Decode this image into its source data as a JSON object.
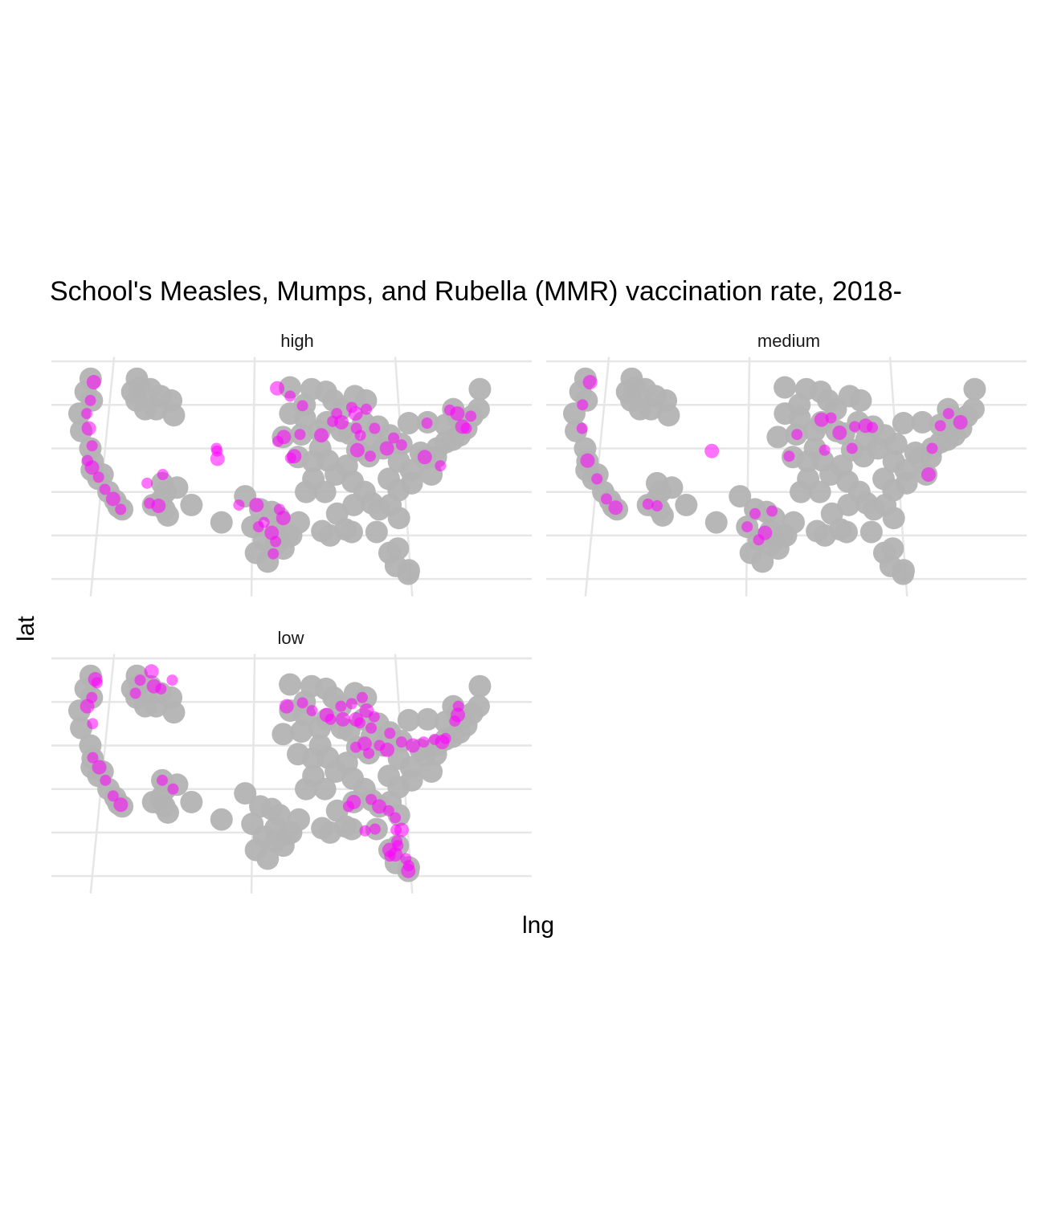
{
  "chart_data": {
    "type": "scatter",
    "title": "School's Measles, Mumps, and Rubella (MMR) vaccination rate, 2018-",
    "xlabel": "lng",
    "ylabel": "lat",
    "facets": [
      "high",
      "medium",
      "low"
    ],
    "xlim": [
      -125,
      -65
    ],
    "ylim": [
      24,
      50
    ],
    "x_gridlines": [
      -120,
      -100,
      -80
    ],
    "y_gridlines": [
      25,
      30,
      35,
      40,
      45,
      50
    ],
    "grid": true,
    "colors": {
      "background_points": "#b3b3b3",
      "highlight_points": "#ff00ff",
      "grid": "#e6e6e6"
    },
    "background_regions": [
      {
        "region": "West Coast",
        "points": [
          [
            -123,
            48
          ],
          [
            -123.5,
            46.5
          ],
          [
            -122.5,
            45.5
          ],
          [
            -124,
            44
          ],
          [
            -123.5,
            42
          ],
          [
            -122,
            40
          ],
          [
            -121.5,
            38.5
          ],
          [
            -120,
            37
          ],
          [
            -119,
            35
          ],
          [
            -118,
            34
          ],
          [
            -117,
            33
          ],
          [
            -117.5,
            33.3
          ],
          [
            -120.5,
            36.5
          ],
          [
            -121.5,
            37.5
          ]
        ]
      },
      {
        "region": "Northern Rockies",
        "points": [
          [
            -116.5,
            48
          ],
          [
            -116,
            47
          ],
          [
            -116.3,
            45.5
          ],
          [
            -115,
            44.5
          ],
          [
            -113,
            46
          ],
          [
            -113.5,
            44.5
          ],
          [
            -111,
            43.8
          ],
          [
            -111.5,
            45.5
          ],
          [
            -114.5,
            46.8
          ],
          [
            -117,
            46.5
          ]
        ]
      },
      {
        "region": "Southwest",
        "points": [
          [
            -112,
            36
          ],
          [
            -111.5,
            35
          ],
          [
            -112,
            34
          ],
          [
            -111.5,
            33
          ],
          [
            -111,
            32.3
          ],
          [
            -110,
            35.5
          ],
          [
            -113,
            33.5
          ],
          [
            -108,
            33.5
          ]
        ]
      },
      {
        "region": "Texas",
        "points": [
          [
            -104,
            31.5
          ],
          [
            -101,
            34.5
          ],
          [
            -99,
            33
          ],
          [
            -97.5,
            32.7
          ],
          [
            -96.5,
            32
          ],
          [
            -97,
            30.5
          ],
          [
            -95.5,
            29.8
          ],
          [
            -97,
            29
          ],
          [
            -98.5,
            29.5
          ],
          [
            -100,
            31
          ],
          [
            -98,
            27
          ],
          [
            -95,
            30
          ],
          [
            -94,
            31.5
          ],
          [
            -96,
            28.5
          ],
          [
            -99.5,
            28
          ]
        ]
      },
      {
        "region": "Midwest",
        "points": [
          [
            -95,
            47
          ],
          [
            -93,
            45
          ],
          [
            -92,
            46.8
          ],
          [
            -90,
            46.5
          ],
          [
            -89,
            45.5
          ],
          [
            -88,
            44.5
          ],
          [
            -90,
            43
          ],
          [
            -93,
            43.5
          ],
          [
            -95,
            44
          ],
          [
            -91,
            42
          ],
          [
            -88,
            42
          ],
          [
            -86,
            46
          ],
          [
            -84.5,
            45.5
          ],
          [
            -83,
            42.5
          ],
          [
            -85,
            43
          ],
          [
            -87,
            41.7
          ],
          [
            -93.5,
            41.6
          ],
          [
            -96,
            41.3
          ],
          [
            -94,
            39
          ],
          [
            -92,
            38.5
          ],
          [
            -90,
            38.6
          ],
          [
            -91,
            40
          ],
          [
            -92,
            36.5
          ],
          [
            -93,
            35
          ],
          [
            -90.5,
            35
          ],
          [
            -89,
            37
          ],
          [
            -87.5,
            38
          ],
          [
            -86,
            39.8
          ],
          [
            -84.5,
            39.1
          ],
          [
            -84,
            41
          ],
          [
            -81.5,
            41.5
          ],
          [
            -82.5,
            40
          ],
          [
            -80,
            40.5
          ]
        ]
      },
      {
        "region": "East",
        "points": [
          [
            -77,
            38.9
          ],
          [
            -75.2,
            40
          ],
          [
            -74,
            40.7
          ],
          [
            -72,
            41.5
          ],
          [
            -71,
            42.3
          ],
          [
            -73.8,
            42.7
          ],
          [
            -76.2,
            43
          ],
          [
            -78.8,
            42.9
          ],
          [
            -79,
            37.5
          ],
          [
            -76.3,
            37
          ],
          [
            -82,
            36.5
          ],
          [
            -80.8,
            35.2
          ],
          [
            -79,
            36
          ],
          [
            -80.5,
            38.5
          ],
          [
            -77.5,
            39.5
          ],
          [
            -75.5,
            39
          ],
          [
            -73,
            41
          ],
          [
            -70,
            43.7
          ],
          [
            -71.5,
            43
          ],
          [
            -72.5,
            44.5
          ],
          [
            -69,
            44.5
          ],
          [
            -68.5,
            46.8
          ],
          [
            -72,
            43.6
          ]
        ]
      },
      {
        "region": "Southeast",
        "points": [
          [
            -86.8,
            36.2
          ],
          [
            -85.3,
            35
          ],
          [
            -84.4,
            33.7
          ],
          [
            -83.5,
            33
          ],
          [
            -81,
            32
          ],
          [
            -82,
            33.5
          ],
          [
            -86.8,
            33.5
          ],
          [
            -88,
            30.7
          ],
          [
            -90,
            30
          ],
          [
            -91,
            30.5
          ],
          [
            -89,
            32.5
          ],
          [
            -84,
            30.4
          ],
          [
            -82.5,
            28
          ],
          [
            -81.4,
            28.5
          ],
          [
            -80.2,
            26
          ],
          [
            -80.3,
            25.6
          ],
          [
            -81.8,
            26.5
          ],
          [
            -87.2,
            30.4
          ]
        ]
      }
    ],
    "series": [
      {
        "name": "high",
        "points": [
          [
            -122.5,
            47.6
          ],
          [
            -122.7,
            45.5
          ],
          [
            -123,
            44
          ],
          [
            -122.5,
            42.3
          ],
          [
            -121.8,
            40.3
          ],
          [
            -122.2,
            38.6
          ],
          [
            -121.5,
            37.8
          ],
          [
            -120.5,
            36.7
          ],
          [
            -119.5,
            35.3
          ],
          [
            -118.3,
            34.2
          ],
          [
            -117.2,
            33
          ],
          [
            -113.5,
            33.7
          ],
          [
            -112.3,
            33.4
          ],
          [
            -112,
            37
          ],
          [
            -114,
            36
          ],
          [
            -104.8,
            38.8
          ],
          [
            -105,
            40
          ],
          [
            -104.9,
            39.7
          ],
          [
            -94.5,
            39.1
          ],
          [
            -95,
            38.9
          ],
          [
            -93.7,
            41.6
          ],
          [
            -90.8,
            41.5
          ],
          [
            -88.6,
            44
          ],
          [
            -89.2,
            43.1
          ],
          [
            -88,
            43
          ],
          [
            -86,
            42.3
          ],
          [
            -86.5,
            44.7
          ],
          [
            -86,
            44
          ],
          [
            -84.5,
            44.5
          ],
          [
            -85.5,
            41.5
          ],
          [
            -86,
            39.8
          ],
          [
            -84.3,
            39.1
          ],
          [
            -83.5,
            42.3
          ],
          [
            -82,
            40
          ],
          [
            -81,
            41.2
          ],
          [
            -80,
            40.4
          ],
          [
            -71.5,
            42.5
          ],
          [
            -71,
            42.3
          ],
          [
            -70.2,
            43.7
          ],
          [
            -72,
            44
          ],
          [
            -73,
            44.4
          ],
          [
            -75,
            38
          ],
          [
            -77,
            39
          ],
          [
            -76.3,
            42.9
          ],
          [
            -98.5,
            31.5
          ],
          [
            -97.5,
            30.3
          ],
          [
            -99.2,
            31
          ],
          [
            -96.5,
            33
          ],
          [
            -96,
            32
          ],
          [
            -97,
            29.3
          ],
          [
            -97.3,
            27.9
          ],
          [
            -99.5,
            33.5
          ],
          [
            -101.8,
            33.5
          ],
          [
            -96.7,
            40.8
          ],
          [
            -95.9,
            41.3
          ],
          [
            -93.3,
            44.9
          ],
          [
            -95,
            46
          ],
          [
            -96.8,
            46.9
          ]
        ]
      },
      {
        "name": "medium",
        "points": [
          [
            -122.3,
            47.6
          ],
          [
            -123,
            45
          ],
          [
            -122.7,
            42.3
          ],
          [
            -121.5,
            38.6
          ],
          [
            -120,
            36.5
          ],
          [
            -118.5,
            34.2
          ],
          [
            -117.2,
            33.2
          ],
          [
            -113,
            33.6
          ],
          [
            -111.8,
            33.4
          ],
          [
            -104.9,
            39.7
          ],
          [
            -94.5,
            39.1
          ],
          [
            -93.4,
            41.6
          ],
          [
            -90,
            43.3
          ],
          [
            -88.7,
            43.5
          ],
          [
            -85.5,
            42.5
          ],
          [
            -84,
            42.6
          ],
          [
            -83.1,
            42.4
          ],
          [
            -86,
            40
          ],
          [
            -87.6,
            41.8
          ],
          [
            -89.7,
            39.8
          ],
          [
            -96.8,
            32.8
          ],
          [
            -97.7,
            30.3
          ],
          [
            -98.5,
            29.5
          ],
          [
            -72.5,
            44
          ],
          [
            -71,
            43
          ],
          [
            -73.8,
            42.6
          ],
          [
            -75.2,
            40
          ],
          [
            -76,
            37
          ],
          [
            -100,
            31
          ],
          [
            -99,
            32.5
          ]
        ]
      },
      {
        "name": "low",
        "points": [
          [
            -122.3,
            47.6
          ],
          [
            -122,
            47.2
          ],
          [
            -122.5,
            45.5
          ],
          [
            -123,
            44.5
          ],
          [
            -122,
            42.5
          ],
          [
            -121.5,
            38.6
          ],
          [
            -120.5,
            37.5
          ],
          [
            -119.5,
            36
          ],
          [
            -118.3,
            34.2
          ],
          [
            -117.2,
            33.2
          ],
          [
            -116,
            47.5
          ],
          [
            -116.5,
            46
          ],
          [
            -114,
            46.8
          ],
          [
            -113,
            46.5
          ],
          [
            -111.5,
            47.5
          ],
          [
            -114.5,
            48.5
          ],
          [
            -112,
            36
          ],
          [
            -110.5,
            35
          ],
          [
            -95.5,
            44.5
          ],
          [
            -93.3,
            44.9
          ],
          [
            -92,
            44
          ],
          [
            -90,
            43.5
          ],
          [
            -89.5,
            43
          ],
          [
            -88,
            44.5
          ],
          [
            -87.8,
            43
          ],
          [
            -86.5,
            44.8
          ],
          [
            -85,
            45.5
          ],
          [
            -84.5,
            44
          ],
          [
            -83.5,
            43.3
          ],
          [
            -85.5,
            42.6
          ],
          [
            -86,
            43
          ],
          [
            -84,
            42
          ],
          [
            -86.2,
            39.8
          ],
          [
            -85,
            40.2
          ],
          [
            -84.5,
            39.1
          ],
          [
            -83,
            40
          ],
          [
            -82,
            39.5
          ],
          [
            -81.5,
            41.4
          ],
          [
            -80,
            40.4
          ],
          [
            -78.5,
            40
          ],
          [
            -77,
            40.4
          ],
          [
            -75.5,
            40.7
          ],
          [
            -74.5,
            40.4
          ],
          [
            -74,
            40.8
          ],
          [
            -71.8,
            44.5
          ],
          [
            -72,
            43.5
          ],
          [
            -72.5,
            42.8
          ],
          [
            -84.5,
            33.8
          ],
          [
            -83.5,
            33
          ],
          [
            -82.3,
            32.5
          ],
          [
            -81.5,
            31.7
          ],
          [
            -80.8,
            30.3
          ],
          [
            -81.5,
            29
          ],
          [
            -81.4,
            28.5
          ],
          [
            -81.8,
            27.5
          ],
          [
            -80.5,
            27
          ],
          [
            -80.2,
            26.2
          ],
          [
            -80.3,
            25.6
          ],
          [
            -84.2,
            30.4
          ],
          [
            -85.5,
            30.2
          ],
          [
            -86.8,
            33.5
          ],
          [
            -87.5,
            33
          ],
          [
            -81.5,
            30.3
          ],
          [
            -82.5,
            28
          ],
          [
            -82.5,
            27.3
          ]
        ]
      }
    ]
  }
}
